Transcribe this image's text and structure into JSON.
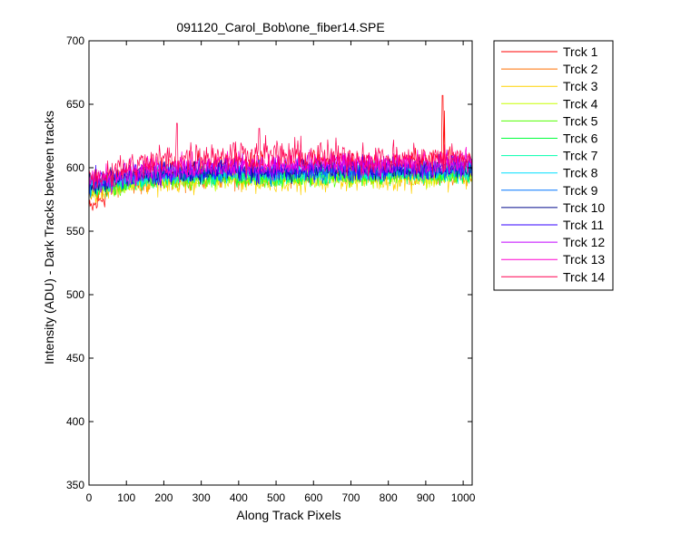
{
  "chart_data": {
    "type": "line",
    "title": "091120_Carol_Bob\\one_fiber14.SPE",
    "xlabel": "Along Track Pixels",
    "ylabel": "Intensity (ADU) - Dark Tracks between tracks",
    "xlim": [
      0,
      1024
    ],
    "ylim": [
      350,
      700
    ],
    "xticks": [
      0,
      100,
      200,
      300,
      400,
      500,
      600,
      700,
      800,
      900,
      1000
    ],
    "yticks": [
      350,
      400,
      450,
      500,
      550,
      600,
      650,
      700
    ],
    "grid": false,
    "legend_position": "outside-right",
    "series": [
      {
        "name": "Trck 1",
        "color": "#ff0000",
        "baseline": [
          566,
          594,
          598,
          601,
          603,
          602,
          604,
          604,
          603,
          605,
          605
        ],
        "noise": 6,
        "spikes": [
          {
            "x": 945,
            "y": 657
          },
          {
            "x": 950,
            "y": 645
          }
        ]
      },
      {
        "name": "Trck 2",
        "color": "#ff6f00",
        "baseline": [
          580,
          588,
          591,
          592,
          593,
          592,
          593,
          594,
          593,
          594,
          595
        ],
        "noise": 6
      },
      {
        "name": "Trck 3",
        "color": "#ffd200",
        "baseline": [
          580,
          587,
          589,
          590,
          591,
          590,
          591,
          592,
          591,
          592,
          593
        ],
        "noise": 6
      },
      {
        "name": "Trck 4",
        "color": "#c8ff00",
        "baseline": [
          581,
          588,
          590,
          591,
          592,
          591,
          592,
          593,
          592,
          593,
          594
        ],
        "noise": 5
      },
      {
        "name": "Trck 5",
        "color": "#52ff00",
        "baseline": [
          582,
          588,
          591,
          592,
          593,
          592,
          593,
          594,
          593,
          594,
          595
        ],
        "noise": 5
      },
      {
        "name": "Trck 6",
        "color": "#00ff3c",
        "baseline": [
          583,
          589,
          592,
          593,
          594,
          593,
          594,
          595,
          594,
          595,
          596
        ],
        "noise": 5
      },
      {
        "name": "Trck 7",
        "color": "#00ffae",
        "baseline": [
          583,
          590,
          593,
          594,
          595,
          594,
          595,
          596,
          595,
          596,
          597
        ],
        "noise": 5
      },
      {
        "name": "Trck 8",
        "color": "#00dfff",
        "baseline": [
          584,
          591,
          594,
          595,
          596,
          595,
          596,
          597,
          596,
          597,
          598
        ],
        "noise": 5
      },
      {
        "name": "Trck 9",
        "color": "#0075ff",
        "baseline": [
          585,
          592,
          595,
          596,
          597,
          596,
          597,
          598,
          597,
          598,
          599
        ],
        "noise": 5
      },
      {
        "name": "Trck 10",
        "color": "#000a8c",
        "baseline": [
          586,
          593,
          596,
          597,
          598,
          597,
          598,
          599,
          598,
          599,
          600
        ],
        "noise": 5
      },
      {
        "name": "Trck 11",
        "color": "#3300ff",
        "baseline": [
          587,
          594,
          597,
          598,
          599,
          598,
          599,
          600,
          599,
          600,
          601
        ],
        "noise": 6
      },
      {
        "name": "Trck 12",
        "color": "#c000ff",
        "baseline": [
          588,
          595,
          598,
          600,
          601,
          600,
          601,
          602,
          601,
          602,
          603
        ],
        "noise": 6
      },
      {
        "name": "Trck 13",
        "color": "#ff00d2",
        "baseline": [
          589,
          596,
          600,
          602,
          603,
          602,
          603,
          604,
          603,
          604,
          605
        ],
        "noise": 6
      },
      {
        "name": "Trck 14",
        "color": "#ff0050",
        "baseline": [
          592,
          600,
          606,
          609,
          611,
          610,
          609,
          608,
          607,
          607,
          608
        ],
        "noise": 8,
        "spikes": [
          {
            "x": 235,
            "y": 635
          },
          {
            "x": 455,
            "y": 631
          }
        ]
      }
    ]
  }
}
